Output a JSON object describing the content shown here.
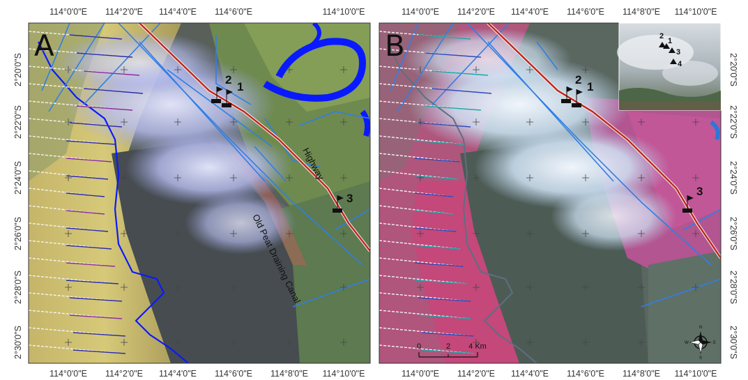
{
  "panels": [
    {
      "label": "A",
      "composite": "false-color",
      "sites": [
        "1",
        "2",
        "3"
      ]
    },
    {
      "label": "B",
      "composite": "false-color-fire",
      "sites": [
        "1",
        "2",
        "3"
      ]
    }
  ],
  "longitude_ticks": [
    "114°0'0\"E",
    "114°2'0\"E",
    "114°4'0\"E",
    "114°6'0\"E",
    "114°8'0\"E",
    "114°10'0\"E"
  ],
  "latitude_ticks": [
    "2°20'0\"S",
    "2°22'0\"S",
    "2°24'0\"S",
    "2°26'0\"S",
    "2°28'0\"S",
    "2°30'0\"S"
  ],
  "annotations": {
    "highway": "Highway",
    "canal": "Old Peat Draining Canal",
    "site_labels": [
      "2",
      "1",
      "3"
    ]
  },
  "inset": {
    "site_labels": [
      "2",
      "1",
      "3",
      "4"
    ]
  },
  "scale_bar": {
    "labels": [
      "0",
      "2",
      "4 Km"
    ]
  },
  "compass": {
    "north": "N",
    "south": "S",
    "east": "E",
    "west": "W"
  },
  "colors": {
    "river": "#0a1aff",
    "highway": "#c0281e",
    "canal": "#2f7fe6",
    "burn_scar_b": "#c8467a",
    "smoke": "#b8c6ff"
  }
}
